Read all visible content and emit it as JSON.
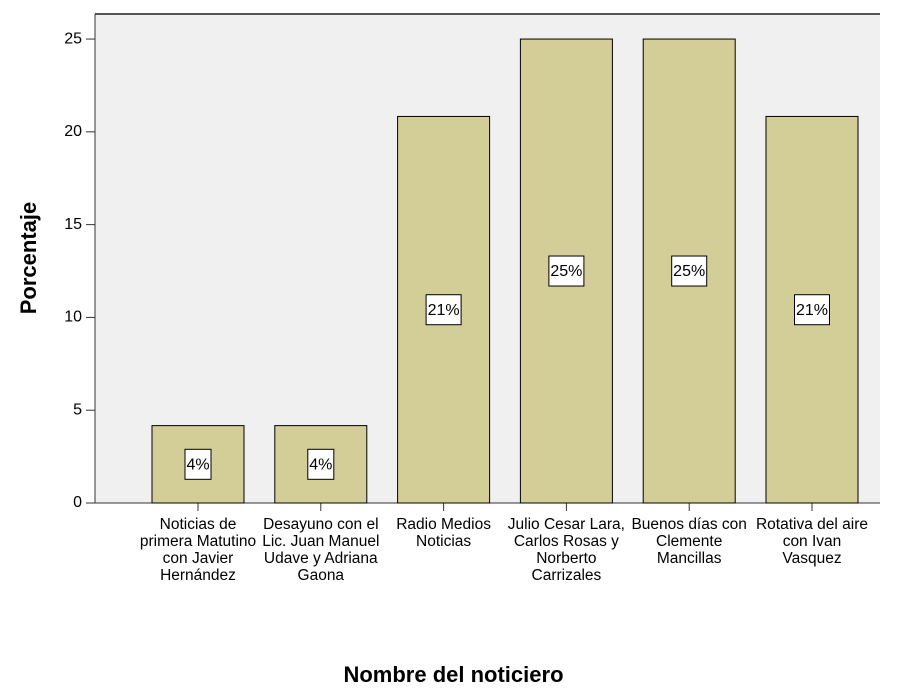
{
  "chart_data": {
    "type": "bar",
    "x_label": "Nombre del noticiero",
    "y_label": "Porcentaje",
    "categories": [
      "Noticias de primera Matutino con Javier Hernández",
      "Desayuno con el Lic. Juan Manuel Udave y Adriana Gaona",
      "Radio Medios Noticias",
      "Julio Cesar Lara, Carlos Rosas y Norberto Carrizales",
      "Buenos días con Clemente Mancillas",
      "Rotativa del aire con Ivan Vasquez"
    ],
    "values": [
      4.17,
      4.17,
      20.83,
      25,
      25,
      20.83
    ],
    "value_labels": [
      "4%",
      "4%",
      "21%",
      "25%",
      "25%",
      "21%"
    ],
    "color": "#d3ce97",
    "ylim": [
      0,
      26.35
    ],
    "yticks": [
      0,
      5,
      10,
      15,
      20,
      25
    ]
  }
}
